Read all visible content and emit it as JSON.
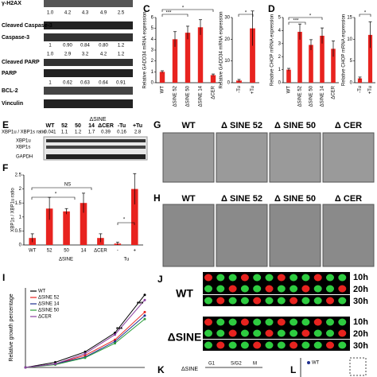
{
  "figure": {
    "blot": {
      "labels": [
        "γ-H2AX",
        "Cleaved Caspase-3",
        "Caspase-3",
        "Cleaved PARP",
        "PARP",
        "BCL-2",
        "Vinculin"
      ],
      "ratios": [
        [
          "1.0",
          "4.2",
          "4.3",
          "4.9",
          "2.5"
        ],
        [
          "1",
          "0.90",
          "0.84",
          "0.80",
          "1.2"
        ],
        [
          "1.0",
          "2.9",
          "3.2",
          "4.2",
          "1.2"
        ],
        [
          "1",
          "0.62",
          "0.63",
          "0.64",
          "0.91"
        ]
      ]
    },
    "panel_e": {
      "letter": "E",
      "group": "ΔSINE",
      "lanes": [
        "WT",
        "52",
        "50",
        "14",
        "ΔCER",
        "-Tu",
        "+Tu"
      ],
      "ratio_label": "XBP1u / XBP1s ratio",
      "ratios": [
        "0.041",
        "1.1",
        "1.2",
        "1.7",
        "0.39",
        "0.16",
        "2.8"
      ],
      "bands": [
        "XBP1u",
        "XBP1s",
        "GAPDH"
      ]
    },
    "panel_g": {
      "letter": "G",
      "labels": [
        "WT",
        "Δ SINE 52",
        "Δ SINE 50",
        "Δ CER"
      ]
    },
    "panel_h": {
      "letter": "H",
      "labels": [
        "WT",
        "Δ SINE 52",
        "Δ SINE 50",
        "Δ CER"
      ]
    },
    "panel_j": {
      "letter": "J",
      "rows": [
        "WT",
        "ΔSINE"
      ],
      "times": [
        "10h",
        "20h",
        "30h"
      ]
    },
    "panel_k": {
      "letter": "K",
      "label": "ΔSINE",
      "phases": [
        "G1",
        "S/G2",
        "M"
      ]
    },
    "panel_l": {
      "letter": "L",
      "legend": "WT"
    }
  },
  "chart_data": [
    {
      "type": "bar",
      "panel": "C",
      "ylabel": "Relative GADD34 mRNA expression",
      "categories": [
        "WT",
        "ΔSINE 52",
        "ΔSINE 50",
        "ΔSINE 14",
        "ΔCER"
      ],
      "values": [
        1,
        4,
        4.6,
        5.1,
        0.7
      ],
      "errors": [
        0.1,
        0.7,
        0.6,
        0.7,
        0.1
      ],
      "color": "#e8231f",
      "ylim": [
        0,
        6
      ],
      "yticks": [
        0,
        1,
        2,
        3,
        4,
        5,
        6
      ],
      "annotations": [
        "***",
        "*"
      ]
    },
    {
      "type": "bar",
      "ylabel": "Relative GADD34 mRNA expression",
      "categories": [
        "-Tu",
        "+Tu"
      ],
      "values": [
        1,
        25
      ],
      "errors": [
        0.5,
        8
      ],
      "color": "#e8231f",
      "ylim": [
        0,
        30
      ],
      "yticks": [
        0,
        10,
        20,
        30
      ],
      "annotations": [
        "*"
      ]
    },
    {
      "type": "bar",
      "panel": "D",
      "ylabel": "Relative CHOP mRNA expression",
      "categories": [
        "WT",
        "ΔSINE 52",
        "ΔSINE 50",
        "ΔSINE 14",
        "ΔCER"
      ],
      "values": [
        1,
        3.9,
        2.9,
        3.6,
        2.6
      ],
      "errors": [
        0.1,
        0.6,
        0.4,
        0.6,
        0.6
      ],
      "color": "#e8231f",
      "ylim": [
        0,
        5
      ],
      "yticks": [
        0,
        1,
        2,
        3,
        4,
        5
      ],
      "annotations": [
        "***",
        "*"
      ]
    },
    {
      "type": "bar",
      "ylabel": "Relative CHOP mRNA expression",
      "categories": [
        "-Tu",
        "+Tu"
      ],
      "values": [
        1,
        11
      ],
      "errors": [
        0.3,
        3
      ],
      "color": "#e8231f",
      "ylim": [
        0,
        15
      ],
      "yticks": [
        0,
        5,
        10,
        15
      ],
      "annotations": [
        "*"
      ]
    },
    {
      "type": "bar",
      "panel": "F",
      "ylabel": "XBP1s / XBP1u ratio",
      "categories": [
        "WT",
        "52",
        "50",
        "14",
        "ΔCER",
        "-",
        "+"
      ],
      "groups": [
        "ΔSINE",
        "Tu"
      ],
      "values": [
        0.25,
        1.3,
        1.2,
        1.5,
        0.25,
        0.05,
        2.0
      ],
      "errors": [
        0.15,
        0.4,
        0.1,
        0.35,
        0.15,
        0.05,
        0.55
      ],
      "color": "#e8231f",
      "ylim": [
        0,
        2.5
      ],
      "yticks": [
        0,
        0.5,
        1,
        1.5,
        2,
        2.5
      ],
      "annotations": [
        "NS",
        "*",
        "*"
      ]
    },
    {
      "type": "line",
      "panel": "I",
      "ylabel": "Relative growth percentage",
      "x": [
        1,
        2,
        3,
        4,
        5
      ],
      "xlim": [
        1,
        5
      ],
      "ylim": [
        0,
        2.3
      ],
      "series": [
        {
          "name": "WT",
          "color": "#000000",
          "values": [
            0,
            0.15,
            0.45,
            1.0,
            2.1
          ]
        },
        {
          "name": "ΔSINE 52",
          "color": "#e8231f",
          "values": [
            0,
            0.1,
            0.35,
            0.8,
            1.6
          ]
        },
        {
          "name": "ΔSINE 14",
          "color": "#1f2f8f",
          "values": [
            0,
            0.1,
            0.3,
            0.75,
            1.5
          ]
        },
        {
          "name": "ΔSINE 50",
          "color": "#2a9d3a",
          "values": [
            0,
            0.08,
            0.28,
            0.7,
            1.4
          ]
        },
        {
          "name": "ΔCER",
          "color": "#8a3fa0",
          "values": [
            0,
            0.1,
            0.4,
            0.95,
            1.95
          ]
        }
      ],
      "annotations": [
        "***",
        "***"
      ]
    }
  ]
}
